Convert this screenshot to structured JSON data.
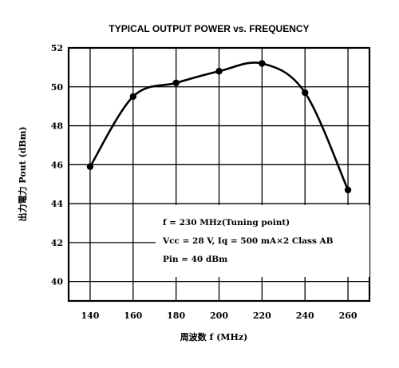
{
  "chart_data": {
    "type": "line",
    "title": "TYPICAL OUTPUT POWER vs. FREQUENCY",
    "xlabel": "周波数 f (MHz)",
    "ylabel": "出力電力 Pout (dBm)",
    "x": [
      140,
      160,
      180,
      200,
      220,
      240,
      260
    ],
    "series": [
      {
        "values": [
          45.9,
          49.5,
          50.2,
          50.8,
          51.2,
          49.7,
          44.7
        ]
      }
    ],
    "xlim": [
      130,
      270
    ],
    "ylim": [
      39,
      52
    ],
    "xticks": [
      "140",
      "160",
      "180",
      "200",
      "220",
      "240",
      "260"
    ],
    "yticks": [
      "40",
      "42",
      "44",
      "46",
      "48",
      "50",
      "52"
    ],
    "grid": true,
    "annotation": [
      "f = 230 MHz(Tuning point)",
      "Vcc = 28 V, Iq = 500 mA×2 Class AB",
      "Pin = 40 dBm"
    ]
  }
}
